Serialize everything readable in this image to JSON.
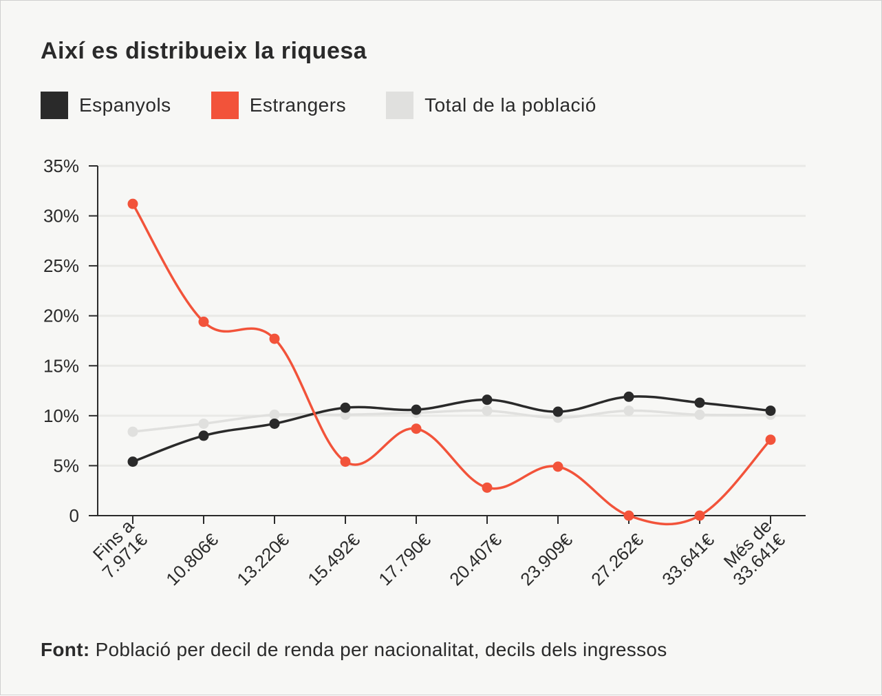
{
  "title": "Així es distribueix la riquesa",
  "source": {
    "label": "Font:",
    "text": "Població per decil de renda per nacionalitat, decils dels ingressos"
  },
  "chart_data": {
    "type": "line",
    "title": "Així es distribueix la riquesa",
    "xlabel": "",
    "ylabel": "",
    "ylim": [
      0,
      35
    ],
    "yticks": [
      0,
      5,
      10,
      15,
      20,
      25,
      30,
      35
    ],
    "ytick_labels": [
      "0",
      "5%",
      "10%",
      "15%",
      "20%",
      "25%",
      "30%",
      "35%"
    ],
    "grid": true,
    "legend": "top-left",
    "categories": [
      [
        "Fins a",
        "7.971€"
      ],
      [
        "10.806€"
      ],
      [
        "13.220€"
      ],
      [
        "15.492€"
      ],
      [
        "17.790€"
      ],
      [
        "20.407€"
      ],
      [
        "23.909€"
      ],
      [
        "27.262€"
      ],
      [
        "33.641€"
      ],
      [
        "Més de",
        "33.641€"
      ]
    ],
    "series": [
      {
        "name": "Total de la població",
        "color": "#e0e0de",
        "values": [
          8.4,
          9.2,
          10.1,
          10.1,
          10.3,
          10.5,
          9.8,
          10.5,
          10.1,
          10.1
        ]
      },
      {
        "name": "Espanyols",
        "color": "#2a2a2a",
        "values": [
          5.4,
          8.0,
          9.2,
          10.8,
          10.6,
          11.6,
          10.4,
          11.9,
          11.3,
          10.5
        ]
      },
      {
        "name": "Estrangers",
        "color": "#f2533a",
        "values": [
          31.2,
          19.4,
          17.7,
          5.4,
          8.7,
          2.8,
          4.9,
          0,
          0,
          7.6
        ]
      }
    ],
    "legend_order": [
      1,
      2,
      0
    ]
  }
}
